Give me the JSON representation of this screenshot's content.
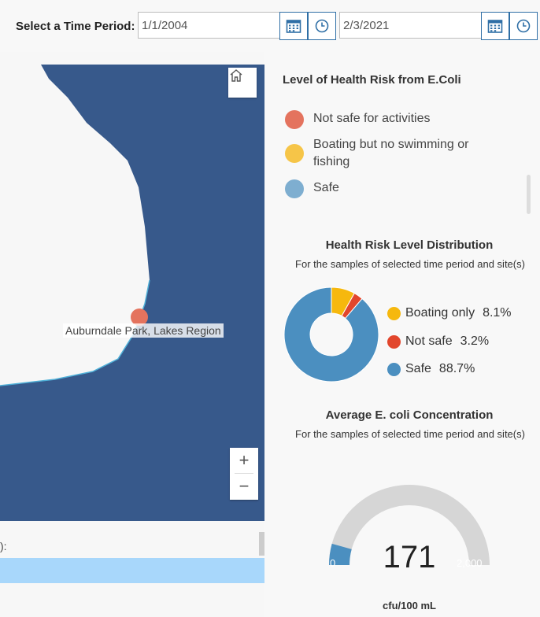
{
  "header": {
    "period_label": "Select a Time Period:",
    "start_date": "1/1/2004",
    "end_date": "2/3/2021"
  },
  "map": {
    "site_label": "Auburndale Park, Lakes Region",
    "zoom_in": "+",
    "zoom_out": "−",
    "bottom_text": "):"
  },
  "legend": {
    "title": "Level of Health Risk from E.Coli",
    "items": [
      {
        "label": "Not safe for activities",
        "color": "#e4735e"
      },
      {
        "label": "Boating but no swimming or fishing",
        "color": "#f6c548"
      },
      {
        "label": "Safe",
        "color": "#7eaed0"
      }
    ]
  },
  "distribution": {
    "title": "Health Risk Level Distribution",
    "subtitle": "For the samples of selected time period and site(s)"
  },
  "concentration": {
    "title": "Average E. coli Concentration",
    "subtitle": "For the samples of selected time period and site(s)"
  },
  "chart_data": [
    {
      "type": "pie",
      "title": "Health Risk Level Distribution",
      "subtitle": "For the samples of selected time period and site(s)",
      "categories": [
        "Boating only",
        "Not safe",
        "Safe"
      ],
      "labels": [
        "8.1%",
        "3.2%",
        "88.7%"
      ],
      "values": [
        8.1,
        3.2,
        88.7
      ],
      "colors": [
        "#f6b80e",
        "#e2462c",
        "#4b8fc0"
      ],
      "legend": "right"
    },
    {
      "type": "gauge",
      "title": "Average E. coli Concentration",
      "subtitle": "For the samples of selected time period and site(s)",
      "value": 171,
      "min": 0,
      "max": 2000,
      "min_label": "0",
      "max_label": "2,000",
      "unit": "cfu/100 mL",
      "fill_color": "#4b8fc0",
      "track_color": "#d6d6d6"
    }
  ]
}
